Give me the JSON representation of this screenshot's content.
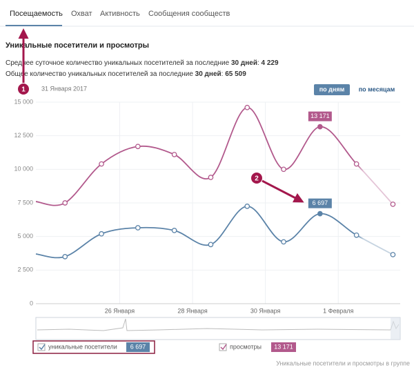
{
  "tabs": [
    "Посещаемость",
    "Охват",
    "Активность",
    "Сообщения сообществ"
  ],
  "heading": "Уникальные посетители и просмотры",
  "stats": [
    {
      "text": "Среднее суточное количество уникальных посетителей за последние ",
      "period": "30 дней",
      "sep": ": ",
      "value": "4 229"
    },
    {
      "text": "Общее количество уникальных посетителей за последние ",
      "period": "30 дней",
      "sep": ": ",
      "value": "65 509"
    }
  ],
  "date": "31 Января 2017",
  "buttons": [
    "по дням",
    "по месяцам"
  ],
  "annotations": [
    "1",
    "2"
  ],
  "footer": "Уникальные посетители и просмотры в группе",
  "chart_data": {
    "type": "line",
    "x": [
      23.7,
      24.5,
      25.5,
      26.5,
      27.5,
      28.5,
      29.5,
      30.5,
      31.5,
      32.5,
      33.5
    ],
    "xlim": [
      23.7,
      33.7
    ],
    "xticks": [
      {
        "value": 26,
        "label": "26 Января"
      },
      {
        "value": 28,
        "label": "28 Января"
      },
      {
        "value": 30,
        "label": "30 Января"
      },
      {
        "value": 32,
        "label": "1 Февраля"
      }
    ],
    "ylim": [
      0,
      15000
    ],
    "yticks": [
      0,
      {
        "value": 2500,
        "label": "2 500"
      },
      {
        "value": 5000,
        "label": "5 000"
      },
      {
        "value": 7500,
        "label": "7 500"
      },
      {
        "value": 10000,
        "label": "10 000"
      },
      {
        "value": 12500,
        "label": "12 500"
      },
      {
        "value": 15000,
        "label": "15 000"
      }
    ],
    "grid": true,
    "series": [
      {
        "name": "уникальные посетители",
        "color": "#5b83a8",
        "values": [
          3700,
          3500,
          5200,
          5650,
          5450,
          4400,
          7250,
          4600,
          6697,
          5100,
          3650
        ],
        "value_labels": [
          null,
          null,
          null,
          null,
          null,
          null,
          null,
          null,
          "6 697",
          null,
          null
        ]
      },
      {
        "name": "просмотры",
        "color": "#b2598c",
        "values": [
          7600,
          7500,
          10400,
          11700,
          11100,
          9400,
          14600,
          10000,
          13171,
          10400,
          7400
        ],
        "value_labels": [
          null,
          null,
          null,
          null,
          null,
          null,
          null,
          null,
          "13 171",
          null,
          null
        ]
      }
    ]
  }
}
